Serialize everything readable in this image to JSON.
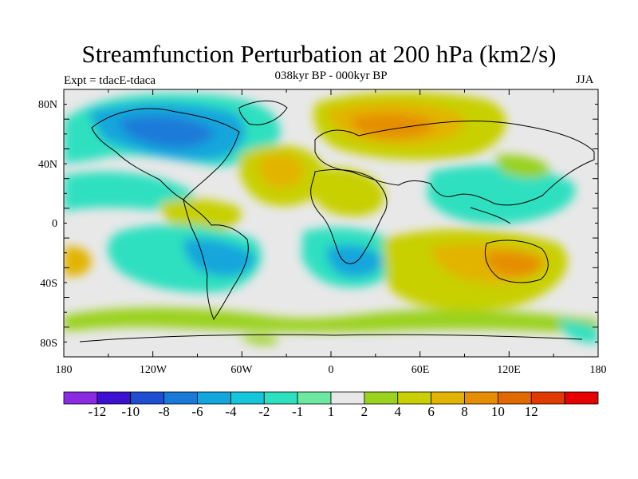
{
  "title": "Streamfunction Perturbation at 200 hPa (km2/s)",
  "subtitle": "038kyr BP - 000kyr BP",
  "experiment": "Expt = tdacE-tdaca",
  "season": "JJA",
  "map": {
    "projection": "cylindrical equidistant",
    "lon_range": [
      -180,
      180
    ],
    "lat_range": [
      -90,
      90
    ],
    "lat_labels": [
      "80N",
      "40N",
      "0",
      "40S",
      "80S"
    ],
    "lon_labels": [
      "180",
      "120W",
      "60W",
      "0",
      "60E",
      "120E",
      "180"
    ],
    "regions": [
      {
        "name": "north-america-arctic",
        "value": -6,
        "lon": -100,
        "lat": 62
      },
      {
        "name": "central-atlantic",
        "value": 6,
        "lon": -40,
        "lat": 35
      },
      {
        "name": "eurasia",
        "value": 8,
        "lon": 50,
        "lat": 62
      },
      {
        "name": "south-pacific",
        "value": -6,
        "lon": -90,
        "lat": -22
      },
      {
        "name": "south-atlantic",
        "value": -6,
        "lon": 10,
        "lat": -25
      },
      {
        "name": "australia-indian",
        "value": 8,
        "lon": 125,
        "lat": -22
      }
    ]
  },
  "colorbar": {
    "colors": [
      "#8a2be2",
      "#3b10d0",
      "#1f4fd0",
      "#1a7ad8",
      "#12a6dc",
      "#15c6da",
      "#2fe0c0",
      "#6de8a0",
      "#e8e8e8",
      "#9ad21e",
      "#c8d000",
      "#e2b400",
      "#e58e00",
      "#e06a00",
      "#e03a00",
      "#e60000"
    ],
    "labels": [
      "-12",
      "-10",
      "-8",
      "-6",
      "-4",
      "-2",
      "-1",
      "1",
      "2",
      "4",
      "6",
      "8",
      "10",
      "12"
    ]
  }
}
